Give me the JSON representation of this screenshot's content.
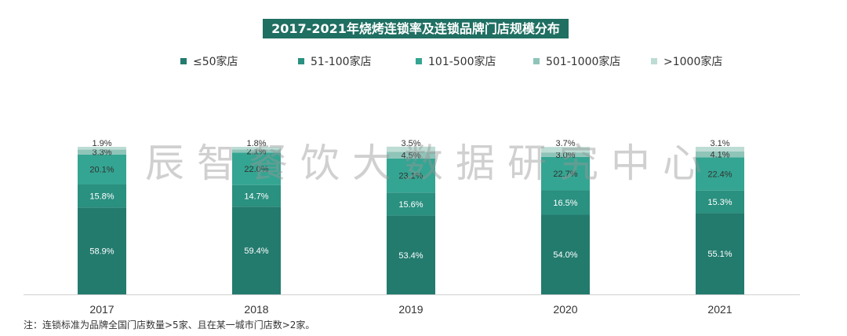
{
  "chart_data": {
    "type": "bar",
    "stacked": true,
    "title": "2017-2021年烧烤连锁率及连锁品牌门店规模分布",
    "categories": [
      "2017",
      "2018",
      "2019",
      "2020",
      "2021"
    ],
    "series": [
      {
        "name": "≤50家店",
        "color": "#237b6e",
        "values": [
          58.9,
          59.4,
          53.4,
          54.0,
          55.1
        ]
      },
      {
        "name": "51-100家店",
        "color": "#2a9080",
        "values": [
          15.8,
          14.7,
          15.6,
          16.5,
          15.3
        ]
      },
      {
        "name": "101-500家店",
        "color": "#34a592",
        "values": [
          20.1,
          22.0,
          23.1,
          22.7,
          22.4
        ]
      },
      {
        "name": "501-1000家店",
        "color": "#8fc4b9",
        "values": [
          3.3,
          2.1,
          4.5,
          3.0,
          4.1
        ]
      },
      {
        "name": ">1000家店",
        "color": "#bcdcd4",
        "values": [
          1.9,
          1.8,
          3.5,
          3.7,
          3.1
        ]
      }
    ],
    "ylim": [
      0,
      100
    ],
    "legend": "top",
    "grid": false
  },
  "watermark": "辰智餐饮大数据研究中心",
  "note": "注：连锁标准为品牌全国门店数量>5家、且在某一城市门店数>2家。"
}
